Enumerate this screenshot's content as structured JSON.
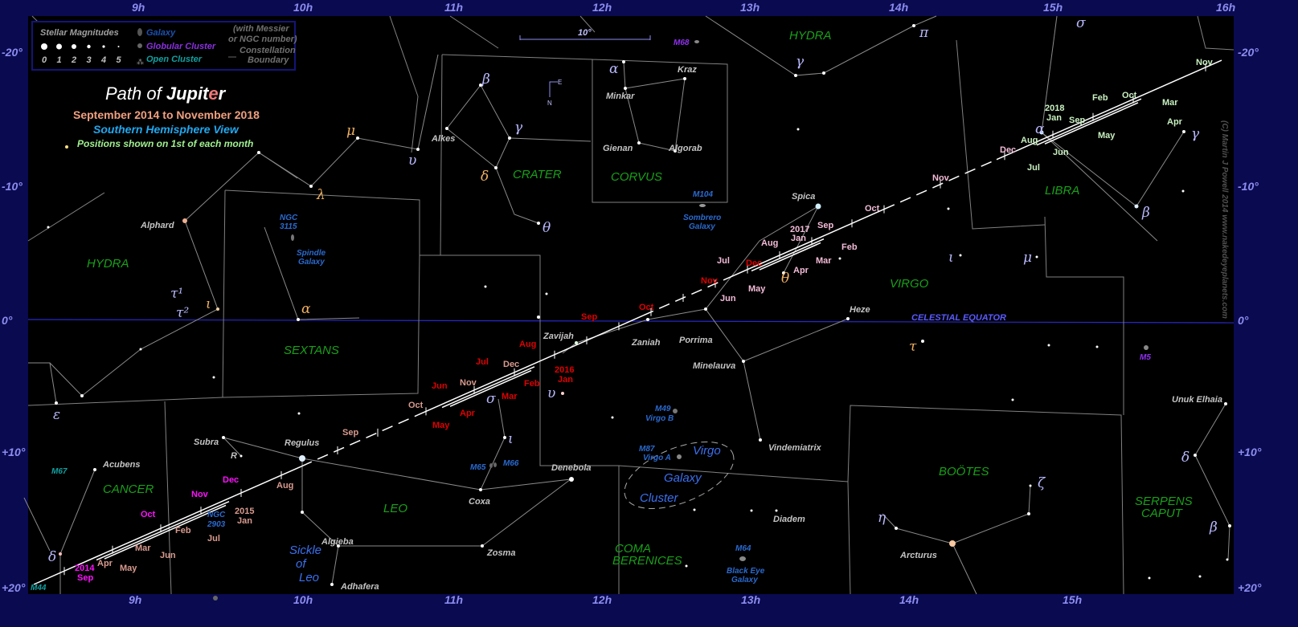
{
  "title": {
    "lead": "Path of ",
    "name_a": "Jupit",
    "name_accent": "e",
    "name_b": "r"
  },
  "subtitle_dates": "September 2014 to November 2018",
  "subtitle_view": "Southern Hemisphere View",
  "subtitle_note": "Positions shown on 1st of each month",
  "legend": {
    "magnitudes_title": "Stellar Magnitudes",
    "magnitudes": [
      "0",
      "1",
      "2",
      "3",
      "4",
      "5"
    ],
    "galaxy": "Galaxy",
    "globular": "Globular Cluster",
    "open": "Open Cluster",
    "messier_note_1": "(with Messier",
    "messier_note_2": "or NGC number)",
    "boundary_1": "Constellation",
    "boundary_2": "Boundary"
  },
  "ra_labels_top": [
    "9h",
    "10h",
    "11h",
    "12h",
    "13h",
    "14h",
    "15h",
    "16h"
  ],
  "ra_labels_bottom": [
    "9h",
    "10h",
    "11h",
    "12h",
    "13h",
    "14h",
    "15h"
  ],
  "dec_labels": [
    "-20°",
    "-10°",
    "0°",
    "+10°",
    "+20°"
  ],
  "equator_label": "CELESTIAL EQUATOR",
  "scale_label": "10°",
  "compass": {
    "north": "N",
    "east": "E"
  },
  "copyright": "(C) Martin J Powell  2014  www.nakedeyeplanets.com",
  "constellations": [
    "HYDRA",
    "HYDRA",
    "CRATER",
    "CORVUS",
    "SEXTANS",
    "CANCER",
    "LEO",
    "COMA",
    "BERENICES",
    "VIRGO",
    "LIBRA",
    "BOÖTES",
    "SERPENS",
    "CAPUT"
  ],
  "stars": [
    "Alphard",
    "Alkes",
    "Minkar",
    "Kraz",
    "Gienan",
    "Algorab",
    "Spica",
    "Zavijah",
    "Zaniah",
    "Porrima",
    "Minelauva",
    "Heze",
    "Vindemiatrix",
    "Subra",
    "R",
    "Regulus",
    "Acubens",
    "Algieba",
    "Adhafera",
    "Zosma",
    "Coxa",
    "Denebola",
    "Diadem",
    "Arcturus",
    "Unuk Elhaia"
  ],
  "greek": [
    "β",
    "γ",
    "δ",
    "θ",
    "α",
    "λ",
    "μ",
    "υ",
    "α",
    "ι",
    "τ¹",
    "τ²",
    "ε",
    "δ",
    "ι",
    "σ",
    "υ",
    "θ",
    "ι",
    "μ",
    "τ",
    "π",
    "γ",
    "σ",
    "γ",
    "α",
    "β",
    "η",
    "ζ",
    "δ",
    "β"
  ],
  "deep_sky": [
    "M68",
    "NGC",
    "3115",
    "Spindle",
    "Galaxy",
    "M104",
    "Sombrero",
    "Galaxy",
    "M49",
    "Virgo B",
    "M87",
    "Virgo A",
    "M65",
    "M66",
    "M64",
    "Black Eye",
    "Galaxy",
    "NGC",
    "2903",
    "M67",
    "M44",
    "M5"
  ],
  "features": [
    "Virgo",
    "Galaxy",
    "Cluster",
    "Sickle",
    "of",
    "Leo"
  ],
  "months": {
    "y2014": [
      "2014",
      "Sep",
      "Oct",
      "Nov",
      "Dec"
    ],
    "y2015": [
      "2015",
      "Jan",
      "Feb",
      "Mar",
      "Apr",
      "May",
      "Jun",
      "Jul",
      "Aug",
      "Sep",
      "Oct",
      "Nov",
      "Dec"
    ],
    "y2016": [
      "2016",
      "Jan",
      "Feb",
      "Mar",
      "Apr",
      "May",
      "Jun",
      "Jul",
      "Aug",
      "Sep",
      "Oct",
      "Nov",
      "Dec"
    ],
    "y2017": [
      "2017",
      "Jan",
      "Feb",
      "Mar",
      "Apr",
      "May",
      "Jun",
      "Jul",
      "Aug",
      "Sep",
      "Oct",
      "Nov",
      "Dec"
    ],
    "y2018": [
      "2018",
      "Jan",
      "Feb",
      "Mar",
      "Apr",
      "May",
      "Jun",
      "Jul",
      "Aug",
      "Sep",
      "Oct",
      "Nov"
    ]
  },
  "colors": {
    "background": "#000000",
    "frame": "#0a0a50",
    "equator": "#2828c8",
    "year_2014": "#ff10ff",
    "year_2015": "#d89a8e",
    "year_2016": "#e00000",
    "year_2017": "#f4bcd8",
    "year_2018": "#c8f0c0"
  }
}
